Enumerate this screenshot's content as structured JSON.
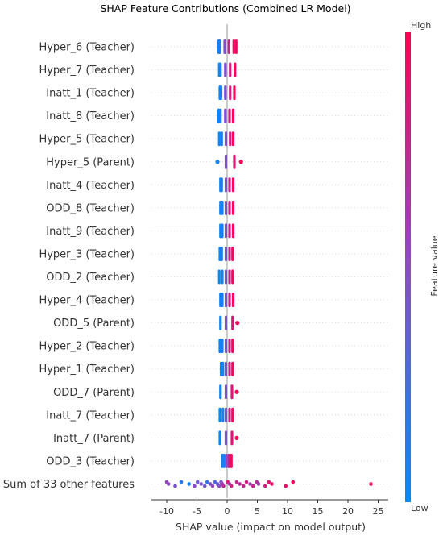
{
  "chart_data": {
    "type": "scatter",
    "title": "SHAP Feature Contributions (Combined LR Model)",
    "xlabel": "SHAP value (impact on model output)",
    "xlim": [
      -12,
      25.5
    ],
    "xticks": [
      -10,
      -5,
      0,
      5,
      10,
      15,
      20,
      25
    ],
    "colorbar": {
      "label": "Feature value",
      "high": "High",
      "low": "Low",
      "low_color": "#008bfb",
      "high_color": "#ff0052"
    },
    "series": [
      {
        "feature": "Hyper_6 (Teacher)",
        "points": [
          {
            "x": -1.4,
            "v": 0.05
          },
          {
            "x": -1.2,
            "v": 0.1
          },
          {
            "x": -0.4,
            "v": 0.45
          },
          {
            "x": 0.3,
            "v": 0.75
          },
          {
            "x": 1.1,
            "v": 0.95
          },
          {
            "x": 1.5,
            "v": 0.92
          }
        ]
      },
      {
        "feature": "Hyper_7 (Teacher)",
        "points": [
          {
            "x": -1.3,
            "v": 0.05
          },
          {
            "x": -1.1,
            "v": 0.1
          },
          {
            "x": -0.3,
            "v": 0.45
          },
          {
            "x": 0.5,
            "v": 0.8
          },
          {
            "x": 1.3,
            "v": 0.95
          }
        ]
      },
      {
        "feature": "Inatt_1 (Teacher)",
        "points": [
          {
            "x": -1.2,
            "v": 0.05
          },
          {
            "x": -1.0,
            "v": 0.1
          },
          {
            "x": -0.3,
            "v": 0.45
          },
          {
            "x": 0.5,
            "v": 0.8
          },
          {
            "x": 1.2,
            "v": 0.95
          }
        ]
      },
      {
        "feature": "Inatt_8 (Teacher)",
        "points": [
          {
            "x": -1.4,
            "v": 0.05
          },
          {
            "x": -1.1,
            "v": 0.1
          },
          {
            "x": -0.3,
            "v": 0.45
          },
          {
            "x": 0.4,
            "v": 0.8
          },
          {
            "x": 1.0,
            "v": 0.95
          }
        ]
      },
      {
        "feature": "Hyper_5 (Teacher)",
        "points": [
          {
            "x": -1.3,
            "v": 0.05
          },
          {
            "x": -0.9,
            "v": 0.1
          },
          {
            "x": -0.2,
            "v": 0.45
          },
          {
            "x": 0.5,
            "v": 0.8
          },
          {
            "x": 1.0,
            "v": 0.95
          }
        ]
      },
      {
        "feature": "Hyper_5 (Parent)",
        "points": [
          {
            "x": -1.6,
            "v": 0.05
          },
          {
            "x": -0.2,
            "v": 0.45
          },
          {
            "x": 1.2,
            "v": 0.85
          },
          {
            "x": 2.3,
            "v": 0.97
          }
        ]
      },
      {
        "feature": "Inatt_4 (Teacher)",
        "points": [
          {
            "x": -1.1,
            "v": 0.05
          },
          {
            "x": -0.9,
            "v": 0.1
          },
          {
            "x": -0.2,
            "v": 0.45
          },
          {
            "x": 0.4,
            "v": 0.8
          },
          {
            "x": 1.0,
            "v": 0.95
          }
        ]
      },
      {
        "feature": "ODD_8 (Teacher)",
        "points": [
          {
            "x": -1.1,
            "v": 0.05
          },
          {
            "x": -0.8,
            "v": 0.1
          },
          {
            "x": -0.2,
            "v": 0.45
          },
          {
            "x": 0.4,
            "v": 0.8
          },
          {
            "x": 1.0,
            "v": 0.95
          }
        ]
      },
      {
        "feature": "Inatt_9 (Teacher)",
        "points": [
          {
            "x": -1.1,
            "v": 0.05
          },
          {
            "x": -0.8,
            "v": 0.1
          },
          {
            "x": -0.2,
            "v": 0.45
          },
          {
            "x": 0.4,
            "v": 0.8
          },
          {
            "x": 1.0,
            "v": 0.95
          }
        ]
      },
      {
        "feature": "Hyper_3 (Teacher)",
        "points": [
          {
            "x": -1.2,
            "v": 0.05
          },
          {
            "x": -0.9,
            "v": 0.1
          },
          {
            "x": -0.2,
            "v": 0.45
          },
          {
            "x": 0.4,
            "v": 0.8
          },
          {
            "x": 0.9,
            "v": 0.95
          }
        ]
      },
      {
        "feature": "ODD_2 (Teacher)",
        "points": [
          {
            "x": -1.3,
            "v": 0.05
          },
          {
            "x": -0.8,
            "v": 0.1
          },
          {
            "x": -0.2,
            "v": 0.45
          },
          {
            "x": 0.4,
            "v": 0.8
          },
          {
            "x": 0.9,
            "v": 0.95
          }
        ]
      },
      {
        "feature": "Hyper_4 (Teacher)",
        "points": [
          {
            "x": -1.1,
            "v": 0.05
          },
          {
            "x": -0.8,
            "v": 0.1
          },
          {
            "x": -0.2,
            "v": 0.45
          },
          {
            "x": 0.4,
            "v": 0.8
          },
          {
            "x": 1.0,
            "v": 0.95
          }
        ]
      },
      {
        "feature": "ODD_5 (Parent)",
        "points": [
          {
            "x": -1.1,
            "v": 0.05
          },
          {
            "x": -0.2,
            "v": 0.45
          },
          {
            "x": 0.9,
            "v": 0.85
          },
          {
            "x": 1.7,
            "v": 0.97
          }
        ]
      },
      {
        "feature": "Hyper_2 (Teacher)",
        "points": [
          {
            "x": -1.2,
            "v": 0.05
          },
          {
            "x": -0.8,
            "v": 0.1
          },
          {
            "x": -0.2,
            "v": 0.45
          },
          {
            "x": 0.4,
            "v": 0.8
          },
          {
            "x": 0.9,
            "v": 0.95
          }
        ]
      },
      {
        "feature": "Hyper_1 (Teacher)",
        "points": [
          {
            "x": -1.0,
            "v": 0.05
          },
          {
            "x": -0.7,
            "v": 0.1
          },
          {
            "x": -0.2,
            "v": 0.45
          },
          {
            "x": 0.4,
            "v": 0.8
          },
          {
            "x": 0.9,
            "v": 0.95
          }
        ]
      },
      {
        "feature": "ODD_7 (Parent)",
        "points": [
          {
            "x": -1.1,
            "v": 0.05
          },
          {
            "x": -0.2,
            "v": 0.45
          },
          {
            "x": 0.8,
            "v": 0.85
          },
          {
            "x": 1.6,
            "v": 0.97
          }
        ]
      },
      {
        "feature": "Inatt_7 (Teacher)",
        "points": [
          {
            "x": -1.2,
            "v": 0.05
          },
          {
            "x": -0.7,
            "v": 0.1
          },
          {
            "x": -0.2,
            "v": 0.45
          },
          {
            "x": 0.4,
            "v": 0.8
          },
          {
            "x": 0.9,
            "v": 0.95
          }
        ]
      },
      {
        "feature": "Inatt_7 (Parent)",
        "points": [
          {
            "x": -1.2,
            "v": 0.05
          },
          {
            "x": -0.2,
            "v": 0.45
          },
          {
            "x": 0.8,
            "v": 0.85
          },
          {
            "x": 1.6,
            "v": 0.97
          }
        ]
      },
      {
        "feature": "ODD_3 (Teacher)",
        "points": [
          {
            "x": -0.8,
            "v": 0.05
          },
          {
            "x": -0.5,
            "v": 0.1
          },
          {
            "x": -0.1,
            "v": 0.45
          },
          {
            "x": 0.3,
            "v": 0.8
          },
          {
            "x": 0.7,
            "v": 0.95
          }
        ]
      },
      {
        "feature": "Sum of 33 other features",
        "points": [
          {
            "x": -10.0,
            "v": 0.55
          },
          {
            "x": -9.7,
            "v": 0.5
          },
          {
            "x": -8.6,
            "v": 0.45
          },
          {
            "x": -7.6,
            "v": 0.15
          },
          {
            "x": -6.3,
            "v": 0.05
          },
          {
            "x": -5.4,
            "v": 0.5
          },
          {
            "x": -4.9,
            "v": 0.4
          },
          {
            "x": -4.3,
            "v": 0.45
          },
          {
            "x": -3.7,
            "v": 0.4
          },
          {
            "x": -3.3,
            "v": 0.2
          },
          {
            "x": -2.8,
            "v": 0.45
          },
          {
            "x": -2.4,
            "v": 0.55
          },
          {
            "x": -2.0,
            "v": 0.3
          },
          {
            "x": -1.6,
            "v": 0.35
          },
          {
            "x": -1.3,
            "v": 0.5
          },
          {
            "x": -1.0,
            "v": 0.45
          },
          {
            "x": -0.8,
            "v": 0.6
          },
          {
            "x": -0.6,
            "v": 0.7
          },
          {
            "x": 0.1,
            "v": 0.85
          },
          {
            "x": 0.4,
            "v": 0.6
          },
          {
            "x": 0.7,
            "v": 0.8
          },
          {
            "x": 1.6,
            "v": 0.75
          },
          {
            "x": 2.1,
            "v": 0.7
          },
          {
            "x": 2.7,
            "v": 0.75
          },
          {
            "x": 3.2,
            "v": 0.8
          },
          {
            "x": 3.8,
            "v": 0.6
          },
          {
            "x": 4.3,
            "v": 0.75
          },
          {
            "x": 4.9,
            "v": 0.7
          },
          {
            "x": 5.2,
            "v": 0.6
          },
          {
            "x": 6.3,
            "v": 0.8
          },
          {
            "x": 6.9,
            "v": 0.85
          },
          {
            "x": 7.4,
            "v": 0.9
          },
          {
            "x": 9.7,
            "v": 0.9
          },
          {
            "x": 10.9,
            "v": 0.95
          },
          {
            "x": 23.8,
            "v": 0.97
          }
        ]
      }
    ]
  }
}
